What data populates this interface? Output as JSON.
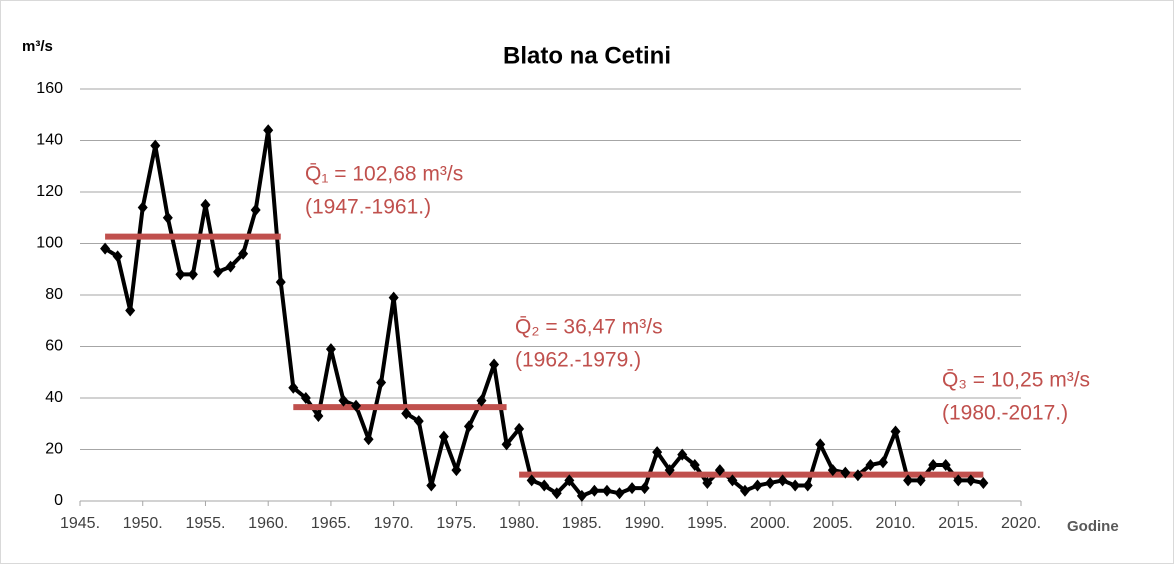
{
  "chart_data": {
    "type": "line",
    "title": "Blato na Cetini",
    "y_label": "m³/s",
    "x_label": "Godine",
    "x": [
      1947,
      1948,
      1949,
      1950,
      1951,
      1952,
      1953,
      1954,
      1955,
      1956,
      1957,
      1958,
      1959,
      1960,
      1961,
      1962,
      1963,
      1964,
      1965,
      1966,
      1967,
      1968,
      1969,
      1970,
      1971,
      1972,
      1973,
      1974,
      1975,
      1976,
      1977,
      1978,
      1979,
      1980,
      1981,
      1982,
      1983,
      1984,
      1985,
      1986,
      1987,
      1988,
      1989,
      1990,
      1991,
      1992,
      1993,
      1994,
      1995,
      1996,
      1997,
      1998,
      1999,
      2000,
      2001,
      2002,
      2003,
      2004,
      2005,
      2006,
      2007,
      2008,
      2009,
      2010,
      2011,
      2012,
      2013,
      2014,
      2015,
      2016,
      2017
    ],
    "series": [
      {
        "color": "#000000",
        "values": [
          98,
          95,
          74,
          114,
          138,
          110,
          88,
          88,
          115,
          89,
          91,
          96,
          113,
          144,
          85,
          44,
          40,
          33,
          59,
          39,
          37,
          24,
          46,
          79,
          34,
          31,
          6,
          25,
          12,
          29,
          39,
          53,
          22,
          28,
          8,
          6,
          3,
          8,
          2,
          4,
          4,
          3,
          5,
          5,
          19,
          12,
          18,
          14,
          7,
          12,
          8,
          4,
          6,
          7,
          8,
          6,
          6,
          22,
          12,
          11,
          10,
          14,
          15,
          27,
          8,
          8,
          14,
          14,
          8,
          8,
          7
        ]
      }
    ],
    "means": [
      {
        "label": "Q̄₁ = 102,68 m³/s",
        "period": "(1947.-1961.)",
        "value": 102.68,
        "x": [
          1947,
          1961
        ]
      },
      {
        "label": "Q̄₂ = 36,47 m³/s",
        "period": "(1962.-1979.)",
        "value": 36.47,
        "x": [
          1962,
          1979
        ]
      },
      {
        "label": "Q̄₃ = 10,25 m³/s",
        "period": "(1980.-2017.)",
        "value": 10.25,
        "x": [
          1980,
          2017
        ]
      }
    ],
    "mean_color": "#c0504d",
    "xlim": [
      1945,
      2020
    ],
    "xticks": [
      {
        "value": 1945,
        "label": "1945."
      },
      {
        "value": 1950,
        "label": "1950."
      },
      {
        "value": 1955,
        "label": "1955."
      },
      {
        "value": 1960,
        "label": "1960."
      },
      {
        "value": 1965,
        "label": "1965."
      },
      {
        "value": 1970,
        "label": "1970."
      },
      {
        "value": 1975,
        "label": "1975."
      },
      {
        "value": 1980,
        "label": "1980."
      },
      {
        "value": 1985,
        "label": "1985."
      },
      {
        "value": 1990,
        "label": "1990."
      },
      {
        "value": 1995,
        "label": "1995."
      },
      {
        "value": 2000,
        "label": "2000."
      },
      {
        "value": 2005,
        "label": "2005."
      },
      {
        "value": 2010,
        "label": "2010."
      },
      {
        "value": 2015,
        "label": "2015."
      },
      {
        "value": 2020,
        "label": "2020."
      }
    ],
    "ylim": [
      0,
      160
    ],
    "yticks": [
      0,
      20,
      40,
      60,
      80,
      100,
      120,
      140,
      160
    ],
    "grid": true
  }
}
